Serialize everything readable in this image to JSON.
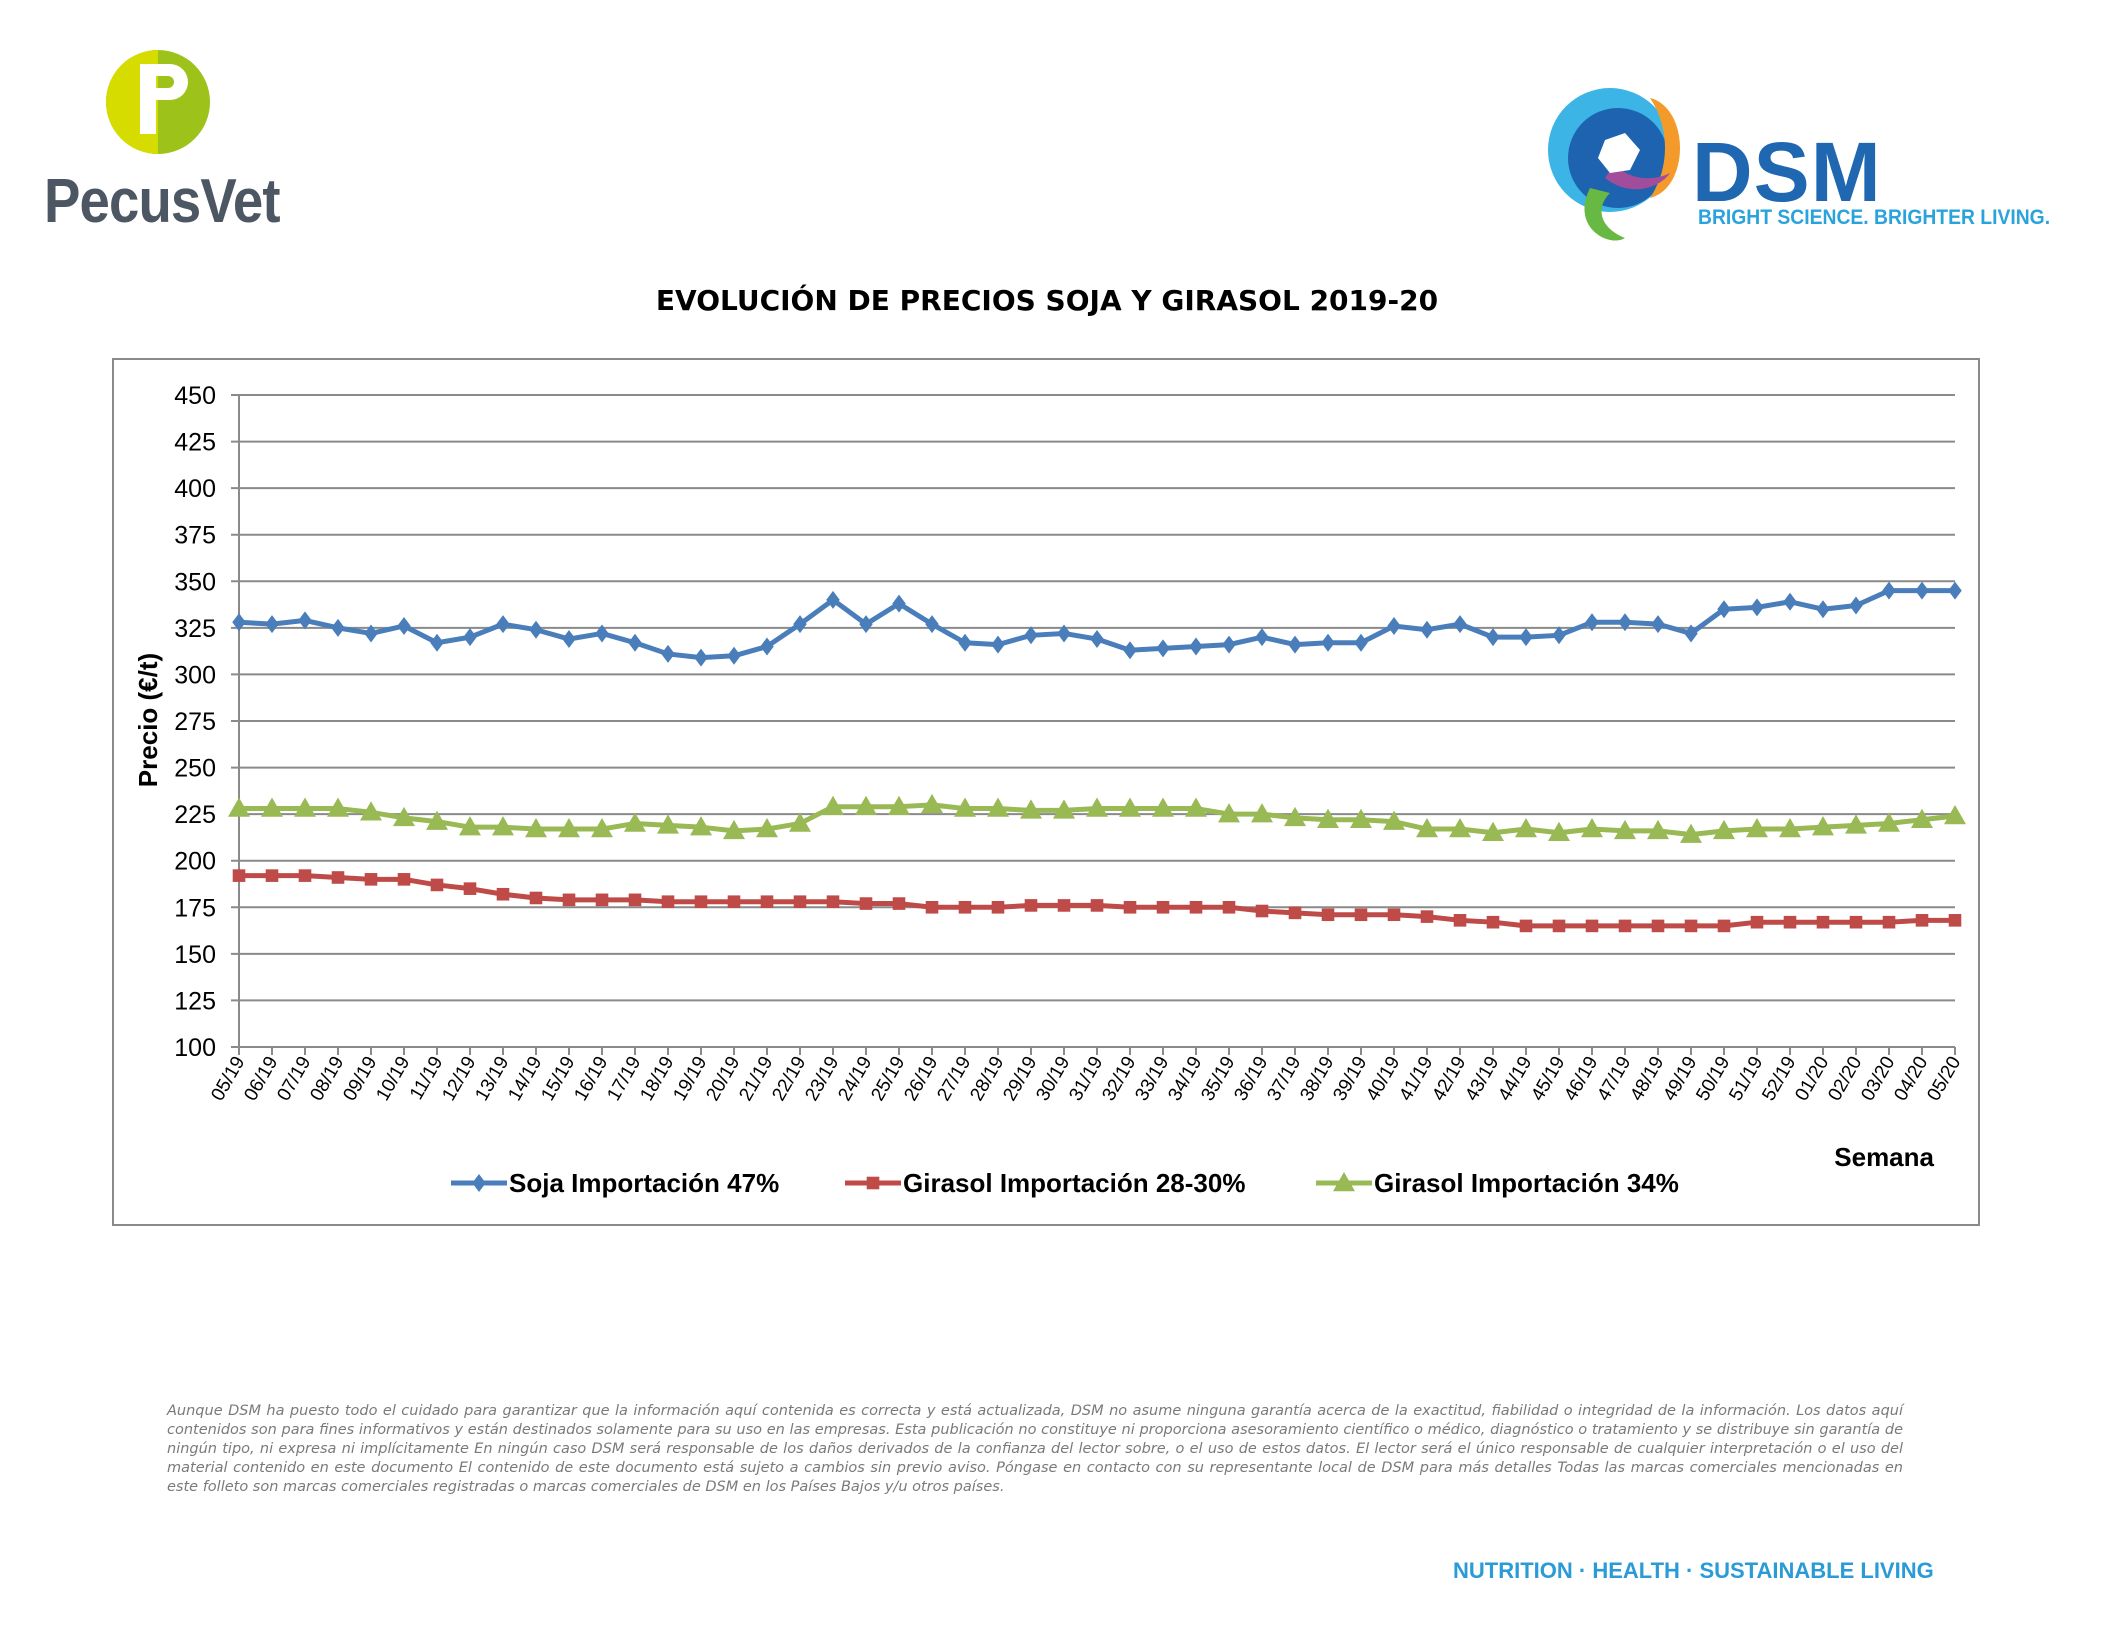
{
  "header": {
    "left_logo": "PecusVet",
    "right_logo": "DSM",
    "right_tagline": "BRIGHT SCIENCE. BRIGHTER LIVING."
  },
  "chart_data": {
    "type": "line",
    "title": "EVOLUCIÓN DE PRECIOS SOJA Y GIRASOL 2019-20",
    "xlabel": "Semana",
    "ylabel": "Precio (€/t)",
    "ylim": [
      100,
      450
    ],
    "yticks": [
      100,
      125,
      150,
      175,
      200,
      225,
      250,
      275,
      300,
      325,
      350,
      375,
      400,
      425,
      450
    ],
    "grid": true,
    "legend_position": "bottom",
    "categories": [
      "05/19",
      "06/19",
      "07/19",
      "08/19",
      "09/19",
      "10/19",
      "11/19",
      "12/19",
      "13/19",
      "14/19",
      "15/19",
      "16/19",
      "17/19",
      "18/19",
      "19/19",
      "20/19",
      "21/19",
      "22/19",
      "23/19",
      "24/19",
      "25/19",
      "26/19",
      "27/19",
      "28/19",
      "29/19",
      "30/19",
      "31/19",
      "32/19",
      "33/19",
      "34/19",
      "35/19",
      "36/19",
      "37/19",
      "38/19",
      "39/19",
      "40/19",
      "41/19",
      "42/19",
      "43/19",
      "44/19",
      "45/19",
      "46/19",
      "47/19",
      "48/19",
      "49/19",
      "50/19",
      "51/19",
      "52/19",
      "01/20",
      "02/20",
      "03/20",
      "04/20",
      "05/20"
    ],
    "series": [
      {
        "name": "Soja Importación 47%",
        "color": "#4a7ebb",
        "marker": "diamond",
        "values": [
          328,
          327,
          329,
          325,
          322,
          326,
          317,
          320,
          327,
          324,
          319,
          322,
          317,
          311,
          309,
          310,
          315,
          327,
          340,
          327,
          338,
          327,
          317,
          316,
          321,
          322,
          319,
          313,
          314,
          315,
          316,
          320,
          316,
          317,
          317,
          326,
          324,
          327,
          320,
          320,
          321,
          328,
          328,
          327,
          322,
          335,
          336,
          339,
          335,
          337,
          345,
          345,
          345
        ]
      },
      {
        "name": "Girasol Importación 28-30%",
        "color": "#be4b48",
        "marker": "square",
        "values": [
          192,
          192,
          192,
          191,
          190,
          190,
          187,
          185,
          182,
          180,
          179,
          179,
          179,
          178,
          178,
          178,
          178,
          178,
          178,
          177,
          177,
          175,
          175,
          175,
          176,
          176,
          176,
          175,
          175,
          175,
          175,
          173,
          172,
          171,
          171,
          171,
          170,
          168,
          167,
          165,
          165,
          165,
          165,
          165,
          165,
          165,
          167,
          167,
          167,
          167,
          167,
          168,
          168
        ]
      },
      {
        "name": "Girasol Importación 34%",
        "color": "#98b954",
        "marker": "triangle",
        "values": [
          228,
          228,
          228,
          228,
          226,
          223,
          221,
          218,
          218,
          217,
          217,
          217,
          220,
          219,
          218,
          216,
          217,
          220,
          229,
          229,
          229,
          230,
          228,
          228,
          227,
          227,
          228,
          228,
          228,
          228,
          225,
          225,
          223,
          222,
          222,
          221,
          217,
          217,
          215,
          217,
          215,
          217,
          216,
          216,
          214,
          216,
          217,
          217,
          218,
          219,
          220,
          222,
          224
        ]
      }
    ]
  },
  "footer": {
    "disclaimer": "Aunque DSM ha puesto todo el cuidado para garantizar que la información aquí contenida es correcta y está actualizada, DSM no asume ninguna garantía acerca de la exactitud, fiabilidad o integridad de la información. Los datos aquí contenidos son para fines informativos y están destinados solamente para su uso en las empresas. Esta publicación no constituye ni proporciona asesoramiento científico o médico, diagnóstico o tratamiento y se distribuye sin garantía de ningún tipo, ni expresa ni implícitamente En ningún caso DSM será responsable de los daños derivados de la confianza del lector sobre, o el uso de estos datos. El lector será el único responsable de cualquier interpretación o el uso del material contenido en este documento El contenido de este documento está sujeto a cambios sin previo aviso. Póngase en contacto con su representante local de DSM para más detalles Todas las marcas comerciales mencionadas en este folleto son marcas comerciales registradas o marcas comerciales de DSM en los Países Bajos y/u otros países.",
    "tagline": "NUTRITION · HEALTH · SUSTAINABLE LIVING"
  }
}
